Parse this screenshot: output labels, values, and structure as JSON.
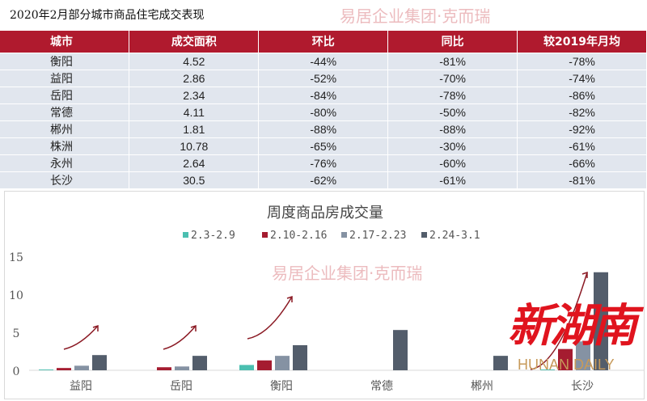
{
  "title": "2020年2月部分城市商品住宅成交表现",
  "table": {
    "headers": [
      "城市",
      "成交面积",
      "环比",
      "同比",
      "较2019年月均"
    ],
    "rows": [
      [
        "衡阳",
        "4.52",
        "-44%",
        "-81%",
        "-78%"
      ],
      [
        "益阳",
        "2.86",
        "-52%",
        "-70%",
        "-74%"
      ],
      [
        "岳阳",
        "2.34",
        "-84%",
        "-78%",
        "-86%"
      ],
      [
        "常德",
        "4.11",
        "-80%",
        "-50%",
        "-82%"
      ],
      [
        "郴州",
        "1.81",
        "-88%",
        "-88%",
        "-92%"
      ],
      [
        "株洲",
        "10.78",
        "-65%",
        "-30%",
        "-61%"
      ],
      [
        "永州",
        "2.64",
        "-76%",
        "-60%",
        "-66%"
      ],
      [
        "长沙",
        "30.5",
        "-62%",
        "-61%",
        "-81%"
      ]
    ]
  },
  "watermark": "易居企业集团·克而瑞",
  "logo": {
    "cn": "新湖南",
    "en": "HUNAN DAILY"
  },
  "chart_data": {
    "type": "bar",
    "title": "周度商品房成交量",
    "categories": [
      "益阳",
      "岳阳",
      "衡阳",
      "常德",
      "郴州",
      "长沙"
    ],
    "series": [
      {
        "name": "2.3-2.9",
        "color": "#4bbfb0",
        "values": [
          0.1,
          0,
          0.7,
          0,
          0,
          0.1
        ]
      },
      {
        "name": "2.10-2.16",
        "color": "#a51c30",
        "values": [
          0.3,
          0.4,
          1.3,
          0,
          0,
          2.8
        ]
      },
      {
        "name": "2.17-2.23",
        "color": "#8592a3",
        "values": [
          0.6,
          0.5,
          1.9,
          0,
          0,
          3.8
        ]
      },
      {
        "name": "2.24-3.1",
        "color": "#535d6b",
        "values": [
          2.0,
          1.9,
          3.3,
          5.3,
          1.9,
          12.9
        ]
      }
    ],
    "yticks": [
      0,
      5,
      10,
      15
    ],
    "ylim": [
      0,
      15
    ],
    "legend": "top",
    "grid": false
  }
}
